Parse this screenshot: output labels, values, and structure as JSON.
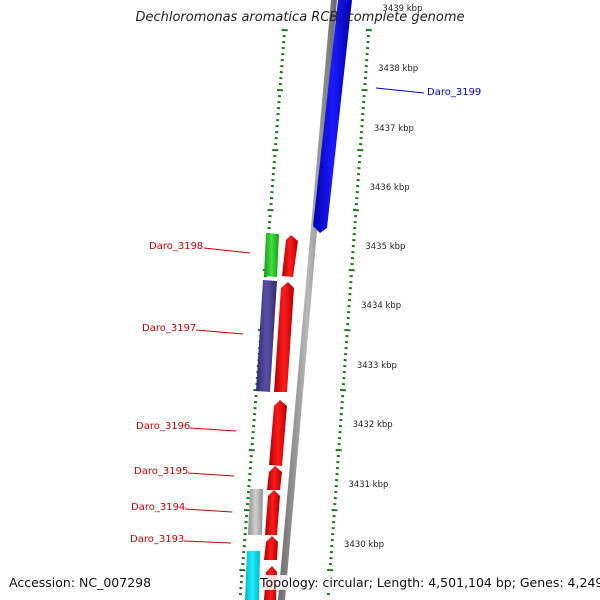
{
  "title": "Dechloromonas aromatica RCB, complete genome",
  "accession": "Accession: NC_007298",
  "topology": "Topology: circular; Length: 4,501,104 bp; Genes: 4,249",
  "colors": {
    "label_red": "#cc0000",
    "label_blue": "#0000cc",
    "tick_green": "#1a7a1a",
    "backbone_gray": "#8a8a8a"
  },
  "scale": {
    "unit": "kbp",
    "ticks": [
      "3439 kbp",
      "3438 kbp",
      "3437 kbp",
      "3436 kbp",
      "3435 kbp",
      "3434 kbp",
      "3433 kbp",
      "3432 kbp",
      "3431 kbp",
      "3430 kbp"
    ]
  },
  "genes": [
    {
      "name": "Daro_3199",
      "color": "#0000ee",
      "label_color": "blue"
    },
    {
      "name": "Daro_3198",
      "color": "#22cc22",
      "label_color": "red"
    },
    {
      "name": "Daro_3197",
      "color": "#4a3d8f",
      "label_color": "red"
    },
    {
      "name": "Daro_3196",
      "color": "#ee0000",
      "label_color": "red"
    },
    {
      "name": "Daro_3195",
      "color": "#ee0000",
      "label_color": "red"
    },
    {
      "name": "Daro_3194",
      "color": "#b0b0b0",
      "label_color": "red"
    },
    {
      "name": "Daro_3193",
      "color": "#ee0000",
      "label_color": "red"
    }
  ]
}
